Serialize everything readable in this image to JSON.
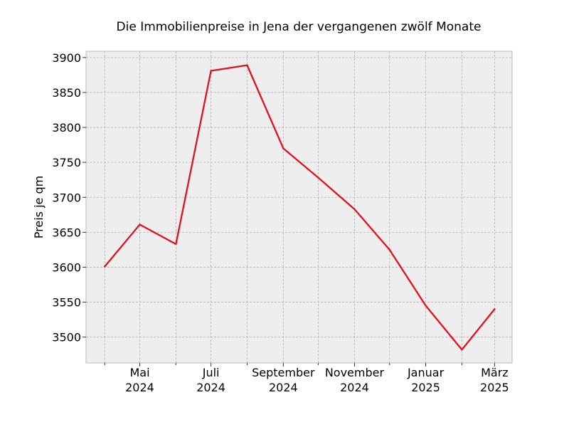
{
  "chart_data": {
    "type": "line",
    "title": "Die Immobilienpreise in Jena der vergangenen zwölf Monate",
    "xlabel": "",
    "ylabel": "Preis je qm",
    "x": [
      "2024-04",
      "2024-05",
      "2024-06",
      "2024-07",
      "2024-08",
      "2024-09",
      "2024-10",
      "2024-11",
      "2024-12",
      "2025-01",
      "2025-02",
      "2025-03"
    ],
    "xlim": [
      "2024-03-16",
      "2025-03-16"
    ],
    "x_major_ticks": [
      {
        "x": "2024-05",
        "label_line1": "Mai",
        "label_line2": "2024"
      },
      {
        "x": "2024-07",
        "label_line1": "Juli",
        "label_line2": "2024"
      },
      {
        "x": "2024-09",
        "label_line1": "September",
        "label_line2": "2024"
      },
      {
        "x": "2024-11",
        "label_line1": "November",
        "label_line2": "2024"
      },
      {
        "x": "2025-01",
        "label_line1": "Januar",
        "label_line2": "2025"
      },
      {
        "x": "2025-03",
        "label_line1": "März",
        "label_line2": "2025"
      }
    ],
    "x_minor_ticks": [
      "2024-04",
      "2024-06",
      "2024-08",
      "2024-10",
      "2024-12",
      "2025-02"
    ],
    "series": [
      {
        "values": [
          3601,
          3661,
          3633,
          3881,
          3889,
          3770,
          3728,
          3683,
          3625,
          3545,
          3482,
          3540
        ],
        "color": "#e0111d"
      }
    ],
    "ylim": [
      3463,
      3909
    ],
    "yticks": [
      3500,
      3550,
      3600,
      3650,
      3700,
      3750,
      3800,
      3850,
      3900
    ],
    "grid": true
  }
}
